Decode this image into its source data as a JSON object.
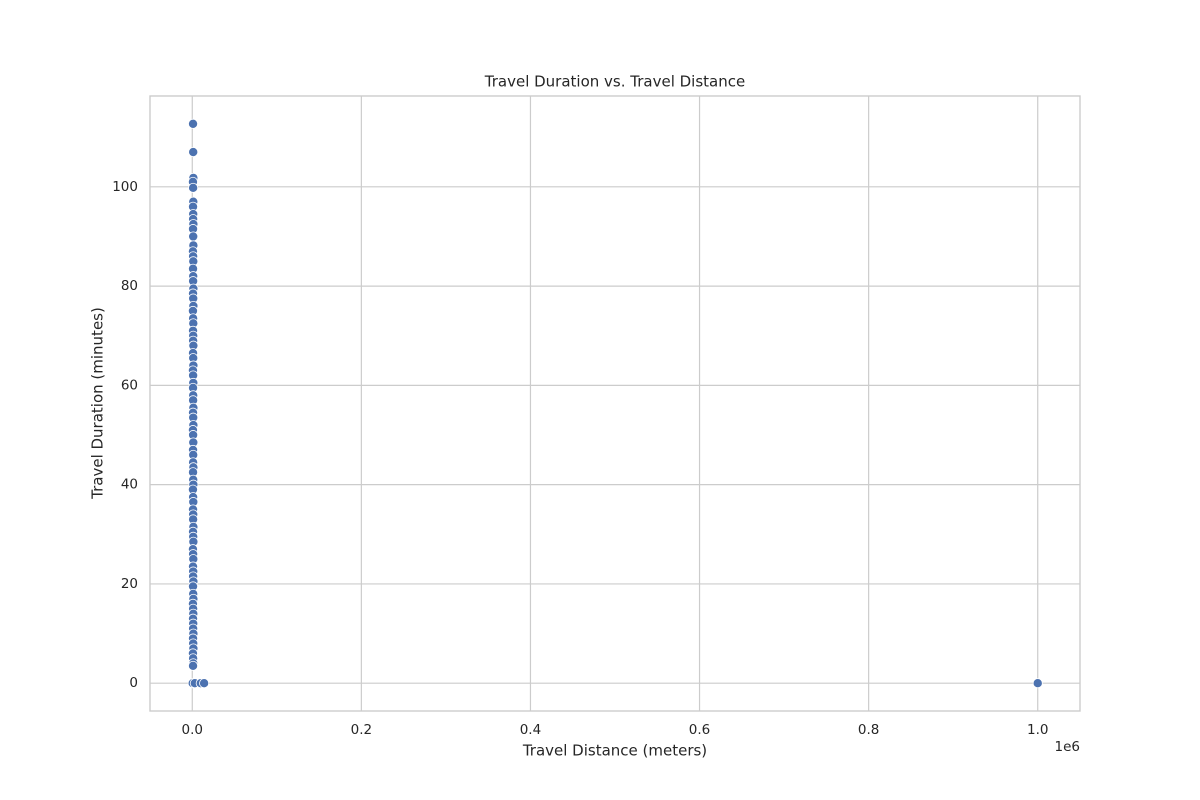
{
  "chart_data": {
    "type": "scatter",
    "title": "Travel Duration vs. Travel Distance",
    "x_label": "Travel Distance (meters)",
    "y_label": "Travel Duration (minutes)",
    "x_offset_label": "1e6",
    "color": "#4c72b0",
    "edge_color": "#ffffff",
    "grid": true,
    "xlim": [
      -50000,
      1050000
    ],
    "ylim": [
      -5.6,
      118.3
    ],
    "xticks": [
      {
        "value": 0,
        "label": "0.0"
      },
      {
        "value": 200000,
        "label": "0.2"
      },
      {
        "value": 400000,
        "label": "0.4"
      },
      {
        "value": 600000,
        "label": "0.6"
      },
      {
        "value": 800000,
        "label": "0.8"
      },
      {
        "value": 1000000,
        "label": "1.0"
      }
    ],
    "yticks": [
      0,
      20,
      40,
      60,
      80,
      100
    ],
    "x": [
      900,
      1100,
      1300,
      800,
      1000,
      1200,
      900,
      1100,
      1000,
      1300,
      900,
      1100,
      1300,
      800,
      1000,
      1200,
      900,
      1100,
      1000,
      1300,
      900,
      1100,
      1300,
      800,
      1000,
      1200,
      900,
      1100,
      1000,
      1300,
      900,
      1100,
      1300,
      800,
      1000,
      1200,
      900,
      1100,
      1000,
      1300,
      900,
      1100,
      1300,
      800,
      1000,
      1200,
      900,
      1100,
      1000,
      1300,
      900,
      1100,
      1300,
      800,
      1000,
      1200,
      900,
      1100,
      1000,
      1300,
      900,
      1100,
      1300,
      800,
      1000,
      1200,
      900,
      1100,
      1000,
      1300,
      900,
      1100,
      1300,
      800,
      1000,
      1200,
      900,
      1100,
      1000,
      1300,
      900,
      1100,
      1300,
      800,
      1000,
      1200,
      900,
      500,
      3000,
      10000,
      14000,
      1000000
    ],
    "values": [
      112.7,
      107,
      101.8,
      101,
      99.8,
      97,
      96,
      94.5,
      93.5,
      92.5,
      91.5,
      90,
      88.2,
      87,
      86,
      85,
      83.5,
      82,
      81,
      79.5,
      78.5,
      77.5,
      76,
      75,
      73.5,
      72.5,
      71,
      70,
      69,
      68,
      66.5,
      65.5,
      64,
      63,
      62,
      60.5,
      59.5,
      58,
      57,
      55.5,
      54.5,
      53.5,
      52,
      51,
      50,
      48.5,
      47,
      46,
      44.5,
      43.5,
      42.5,
      41,
      40,
      39,
      37.5,
      36.5,
      35,
      34,
      33,
      31.5,
      30.5,
      29.5,
      28.5,
      27,
      26,
      25,
      23.5,
      22.5,
      21.5,
      20.5,
      19.5,
      18,
      17,
      16,
      15,
      14,
      13,
      12,
      11,
      10,
      9,
      8,
      7,
      6,
      5,
      4,
      3.5,
      0,
      0,
      0,
      0,
      0
    ]
  }
}
